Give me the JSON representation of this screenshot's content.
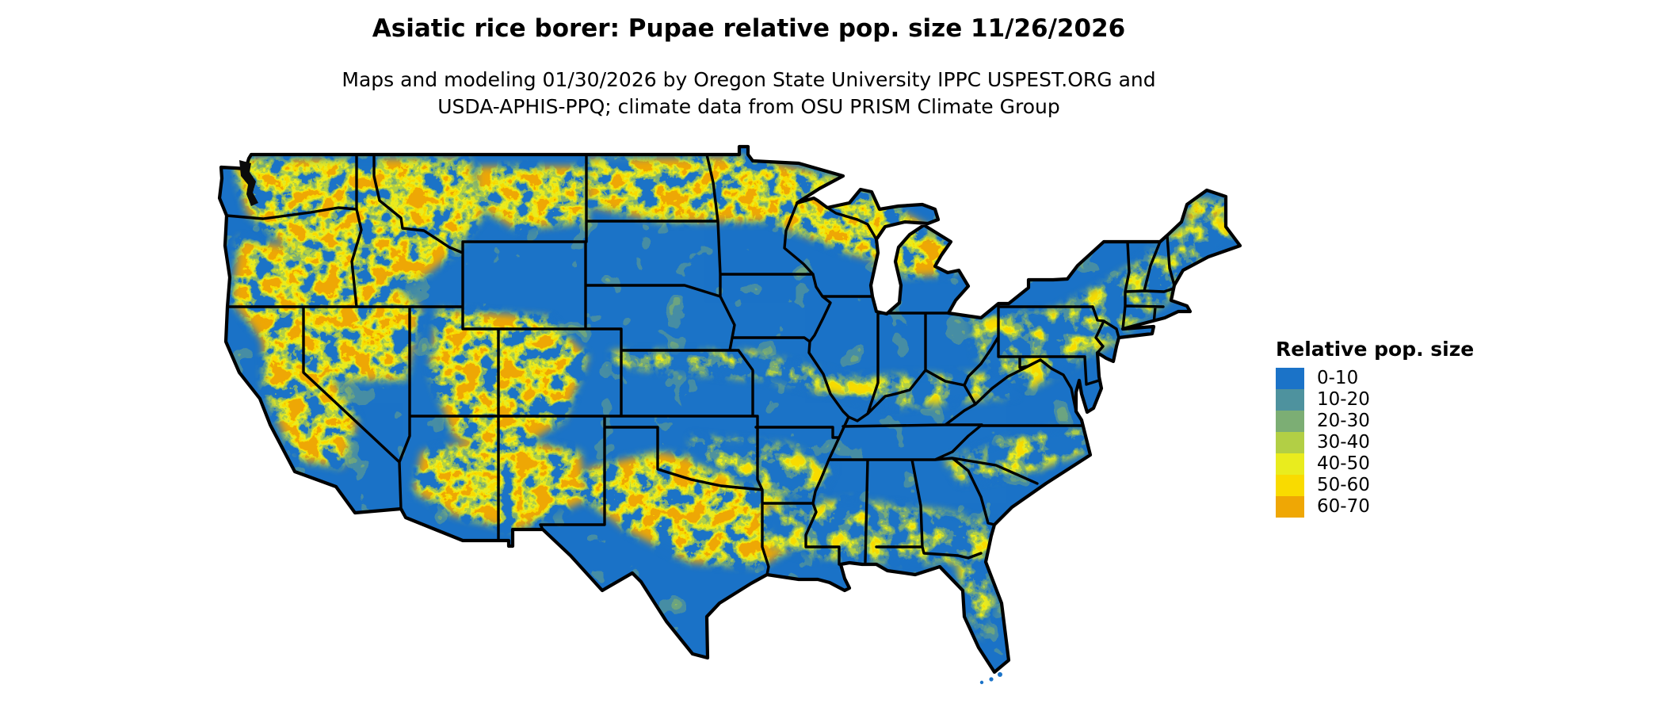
{
  "figure": {
    "title": "Asiatic rice borer: Pupae relative pop. size 11/26/2026",
    "subtitle_line1": "Maps and modeling 01/30/2026 by Oregon State University IPPC USPEST.ORG and",
    "subtitle_line2": "USDA-APHIS-PPQ; climate data from OSU PRISM Climate Group"
  },
  "legend": {
    "title": "Relative pop. size",
    "entries": [
      {
        "label": "0-10",
        "color": "#1b73c8"
      },
      {
        "label": "10-20",
        "color": "#4e929e"
      },
      {
        "label": "20-30",
        "color": "#7cae74"
      },
      {
        "label": "30-40",
        "color": "#b2cf45"
      },
      {
        "label": "40-50",
        "color": "#e9ec1e"
      },
      {
        "label": "50-60",
        "color": "#f9db00"
      },
      {
        "label": "60-70",
        "color": "#efa705"
      }
    ]
  },
  "map": {
    "type": "raster choropleth",
    "region": "Contiguous United States with state boundaries",
    "base_color": "#1b73c8",
    "border_color": "#000000",
    "water_color": "#ffffff"
  }
}
